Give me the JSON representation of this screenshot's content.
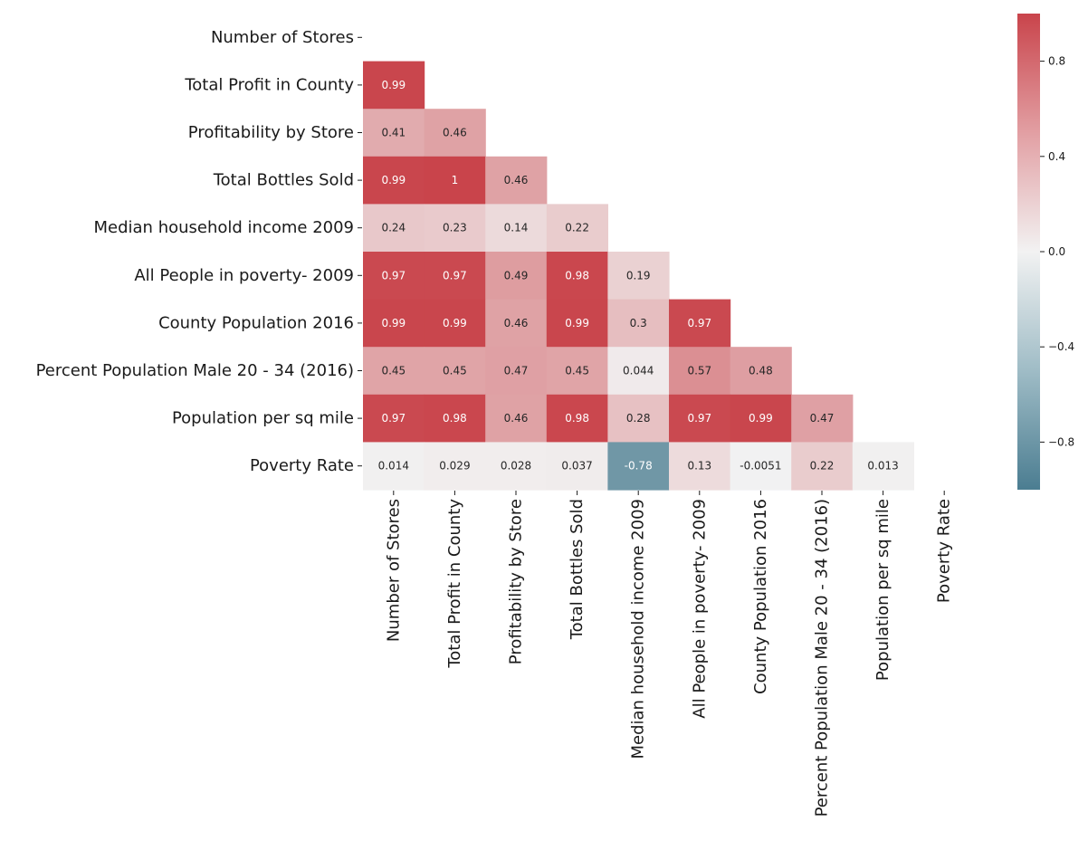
{
  "chart_data": {
    "type": "heatmap",
    "variant": "lower-triangle correlation matrix",
    "labels": [
      "Number of Stores",
      "Total Profit in County",
      "Profitability by Store",
      "Total Bottles Sold",
      "Median household income 2009",
      "All People in poverty- 2009",
      "County Population 2016",
      "Percent Population Male 20 - 34 (2016)",
      "Population per sq mile",
      "Poverty Rate"
    ],
    "matrix": [
      [],
      [
        0.99
      ],
      [
        0.41,
        0.46
      ],
      [
        0.99,
        1,
        0.46
      ],
      [
        0.24,
        0.23,
        0.14,
        0.22
      ],
      [
        0.97,
        0.97,
        0.49,
        0.98,
        0.19
      ],
      [
        0.99,
        0.99,
        0.46,
        0.99,
        0.3,
        0.97
      ],
      [
        0.45,
        0.45,
        0.47,
        0.45,
        0.044,
        0.57,
        0.48
      ],
      [
        0.97,
        0.98,
        0.46,
        0.98,
        0.28,
        0.97,
        0.99,
        0.47
      ],
      [
        0.014,
        0.029,
        0.028,
        0.037,
        -0.78,
        0.13,
        -0.0051,
        0.22,
        0.013
      ]
    ],
    "annotations": [
      [],
      [
        "0.99"
      ],
      [
        "0.41",
        "0.46"
      ],
      [
        "0.99",
        "1",
        "0.46"
      ],
      [
        "0.24",
        "0.23",
        "0.14",
        "0.22"
      ],
      [
        "0.97",
        "0.97",
        "0.49",
        "0.98",
        "0.19"
      ],
      [
        "0.99",
        "0.99",
        "0.46",
        "0.99",
        "0.3",
        "0.97"
      ],
      [
        "0.45",
        "0.45",
        "0.47",
        "0.45",
        "0.044",
        "0.57",
        "0.48"
      ],
      [
        "0.97",
        "0.98",
        "0.46",
        "0.98",
        "0.28",
        "0.97",
        "0.99",
        "0.47"
      ],
      [
        "0.014",
        "0.029",
        "0.028",
        "0.037",
        "-0.78",
        "0.13",
        "-0.0051",
        "0.22",
        "0.013"
      ]
    ],
    "mask": "upper triangle including diagonal",
    "colorbar": {
      "range": [
        -1,
        1
      ],
      "ticks": [
        0.8,
        0.4,
        0.0,
        -0.4,
        -0.8
      ],
      "tick_labels": [
        "0.8",
        "0.4",
        "0.0",
        "−0.4",
        "−0.8"
      ],
      "position": "right"
    },
    "colors": {
      "negative": "#4b7d91",
      "neutral": "#f2f2f2",
      "positive": "#c9444b",
      "text_dark": "#262626",
      "text_light": "#ffffff"
    }
  }
}
